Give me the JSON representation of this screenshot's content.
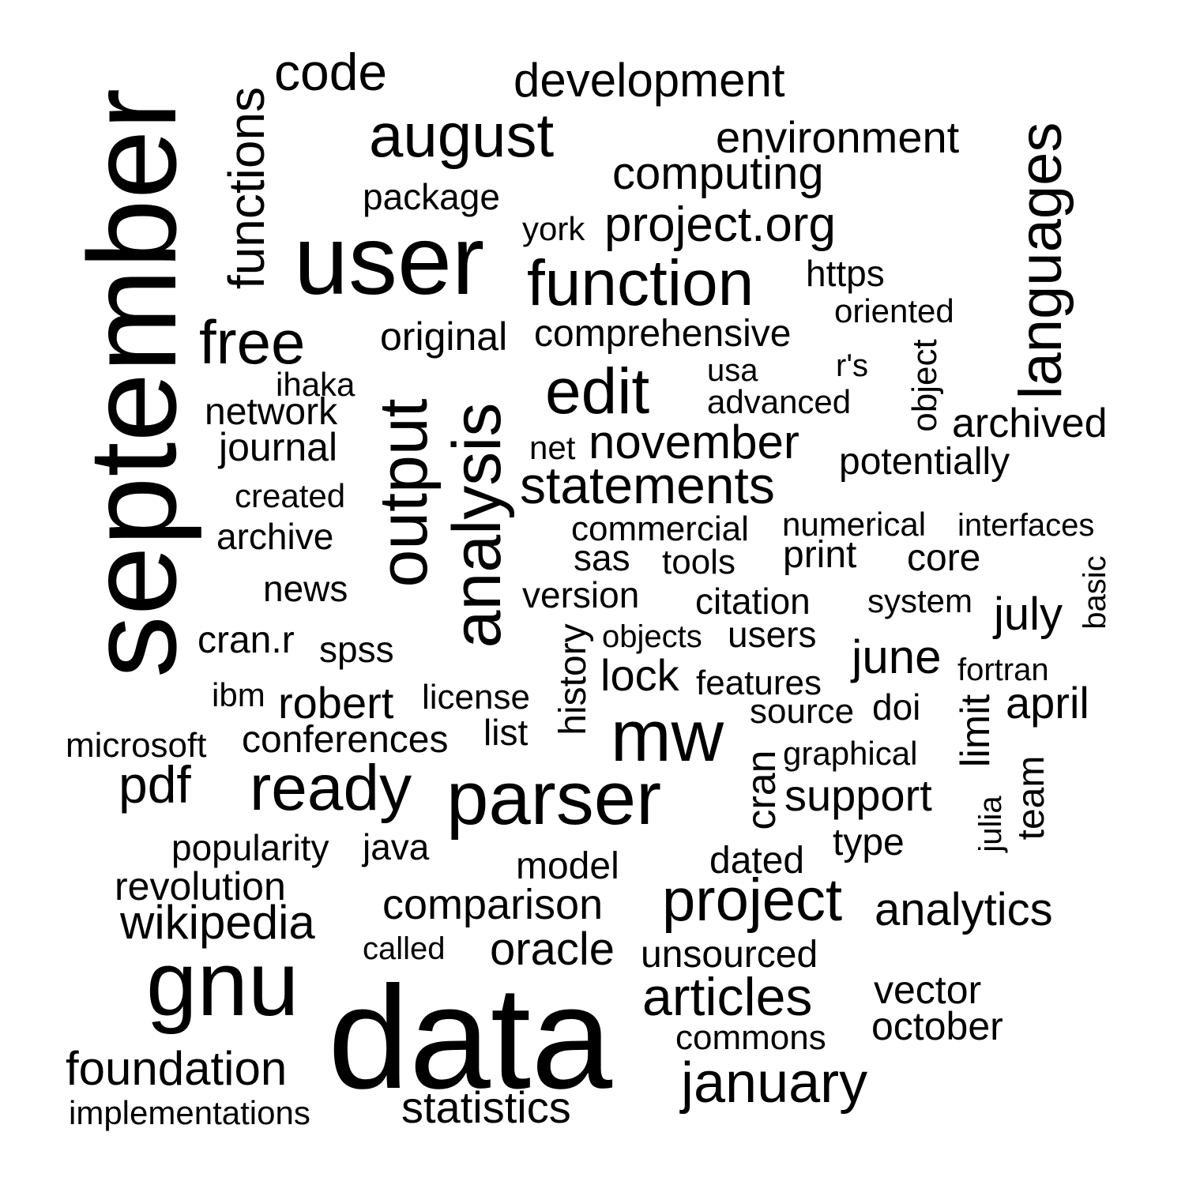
{
  "words": [
    {
      "text": "data"
    },
    {
      "text": "september"
    },
    {
      "text": "user"
    },
    {
      "text": "gnu"
    },
    {
      "text": "parser"
    },
    {
      "text": "ready"
    },
    {
      "text": "mw"
    },
    {
      "text": "analysis"
    },
    {
      "text": "output"
    },
    {
      "text": "function"
    },
    {
      "text": "august"
    },
    {
      "text": "edit"
    },
    {
      "text": "project"
    },
    {
      "text": "free"
    },
    {
      "text": "languages"
    },
    {
      "text": "functions"
    },
    {
      "text": "january"
    },
    {
      "text": "articles"
    },
    {
      "text": "statements"
    },
    {
      "text": "november"
    },
    {
      "text": "development"
    },
    {
      "text": "project.org"
    },
    {
      "text": "computing"
    },
    {
      "text": "environment"
    },
    {
      "text": "code"
    },
    {
      "text": "analytics"
    },
    {
      "text": "foundation"
    },
    {
      "text": "wikipedia"
    },
    {
      "text": "pdf"
    },
    {
      "text": "support"
    },
    {
      "text": "comparison"
    },
    {
      "text": "oracle"
    },
    {
      "text": "statistics"
    },
    {
      "text": "june"
    },
    {
      "text": "april"
    },
    {
      "text": "july"
    },
    {
      "text": "original"
    },
    {
      "text": "comprehensive"
    },
    {
      "text": "revolution"
    },
    {
      "text": "robert"
    },
    {
      "text": "october"
    },
    {
      "text": "vector"
    },
    {
      "text": "archived"
    },
    {
      "text": "potentially"
    },
    {
      "text": "package"
    },
    {
      "text": "journal"
    },
    {
      "text": "network"
    },
    {
      "text": "lock"
    },
    {
      "text": "history"
    },
    {
      "text": "cran"
    },
    {
      "text": "limit"
    },
    {
      "text": "team"
    },
    {
      "text": "commons"
    },
    {
      "text": "unsourced"
    },
    {
      "text": "dated"
    },
    {
      "text": "type"
    },
    {
      "text": "model"
    },
    {
      "text": "popularity"
    },
    {
      "text": "java"
    },
    {
      "text": "conferences"
    },
    {
      "text": "microsoft"
    },
    {
      "text": "implementations"
    },
    {
      "text": "called"
    },
    {
      "text": "license"
    },
    {
      "text": "list"
    },
    {
      "text": "ibm"
    },
    {
      "text": "cran.r"
    },
    {
      "text": "spss"
    },
    {
      "text": "news"
    },
    {
      "text": "archive"
    },
    {
      "text": "created"
    },
    {
      "text": "ihaka"
    },
    {
      "text": "york"
    },
    {
      "text": "https"
    },
    {
      "text": "oriented"
    },
    {
      "text": "object"
    },
    {
      "text": "r's"
    },
    {
      "text": "usa"
    },
    {
      "text": "advanced"
    },
    {
      "text": "net"
    },
    {
      "text": "commercial"
    },
    {
      "text": "numerical"
    },
    {
      "text": "interfaces"
    },
    {
      "text": "sas"
    },
    {
      "text": "tools"
    },
    {
      "text": "print"
    },
    {
      "text": "core"
    },
    {
      "text": "basic"
    },
    {
      "text": "version"
    },
    {
      "text": "citation"
    },
    {
      "text": "system"
    },
    {
      "text": "objects"
    },
    {
      "text": "users"
    },
    {
      "text": "fortran"
    },
    {
      "text": "features"
    },
    {
      "text": "source"
    },
    {
      "text": "doi"
    },
    {
      "text": "graphical"
    },
    {
      "text": "julia"
    }
  ]
}
